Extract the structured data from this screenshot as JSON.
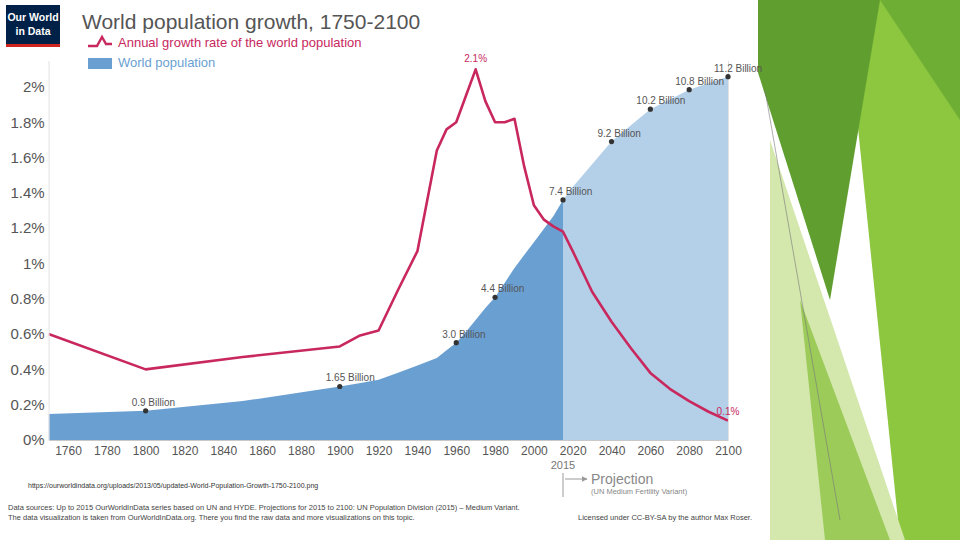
{
  "chart_data": {
    "type": "line",
    "title": "World population growth, 1750-2100",
    "logo": [
      "Our World",
      "in Data"
    ],
    "x": [
      1750,
      1800,
      1850,
      1900,
      1910,
      1920,
      1930,
      1940,
      1950,
      1955,
      1960,
      1965,
      1970,
      1975,
      1980,
      1985,
      1990,
      1995,
      2000,
      2005,
      2010,
      2015,
      2020,
      2030,
      2040,
      2050,
      2060,
      2070,
      2080,
      2090,
      2100
    ],
    "xlim": [
      1750,
      2100
    ],
    "xticks": [
      1760,
      1780,
      1800,
      1820,
      1840,
      1860,
      1880,
      1900,
      1920,
      1940,
      1960,
      1980,
      2000,
      2020,
      2040,
      2060,
      2080,
      2100
    ],
    "ylim": [
      0,
      2.15
    ],
    "yticks": [
      {
        "value": 0,
        "label": "0%"
      },
      {
        "value": 0.2,
        "label": "0.2%"
      },
      {
        "value": 0.4,
        "label": "0.4%"
      },
      {
        "value": 0.6,
        "label": "0.6%"
      },
      {
        "value": 0.8,
        "label": "0.8%"
      },
      {
        "value": 1,
        "label": "1%"
      },
      {
        "value": 1.2,
        "label": "1.2%"
      },
      {
        "value": 1.4,
        "label": "1.4%"
      },
      {
        "value": 1.6,
        "label": "1.6%"
      },
      {
        "value": 1.8,
        "label": "1.8%"
      },
      {
        "value": 2,
        "label": "2%"
      }
    ],
    "y2lim": [
      0,
      11.7
    ],
    "y2ticks": [],
    "grid": false,
    "legend": "top-left",
    "series": [
      {
        "name": "Annual growth rate of the world population",
        "type": "line",
        "color": "#c8285d",
        "values": [
          0.6,
          0.4,
          0.47,
          0.53,
          0.59,
          0.62,
          0.85,
          1.07,
          1.64,
          1.76,
          1.8,
          1.95,
          2.1,
          1.92,
          1.8,
          1.8,
          1.82,
          1.55,
          1.33,
          1.25,
          1.21,
          1.18,
          1.07,
          0.84,
          0.67,
          0.52,
          0.38,
          0.29,
          0.22,
          0.16,
          0.11
        ]
      },
      {
        "name": "World population",
        "type": "area",
        "axis": "y2",
        "color": "#6a9fd2",
        "values": [
          0.8,
          0.9,
          1.2,
          1.65,
          1.75,
          1.86,
          2.07,
          2.3,
          2.53,
          2.77,
          3.0,
          3.34,
          3.7,
          4.07,
          4.4,
          4.85,
          5.3,
          5.7,
          6.1,
          6.5,
          6.9,
          7.4,
          7.8,
          8.5,
          9.2,
          9.7,
          10.2,
          10.5,
          10.8,
          11.0,
          11.2
        ]
      }
    ],
    "annotations": [
      {
        "x": 1970,
        "y": 2.1,
        "label": "2.1%"
      },
      {
        "x": 2100,
        "y": 0.1,
        "label": "0.1%"
      },
      {
        "x": 1800,
        "y": 0.9,
        "label": "0.9 Billion",
        "axis": "y2"
      },
      {
        "x": 1900,
        "y": 1.65,
        "label": "1.65 Billion",
        "axis": "y2"
      },
      {
        "x": 1960,
        "y": 3.0,
        "label": "3.0 Billion",
        "axis": "y2"
      },
      {
        "x": 1980,
        "y": 4.4,
        "label": "4.4 Billion",
        "axis": "y2"
      },
      {
        "x": 2015,
        "y": 7.4,
        "label": "7.4 Billion",
        "axis": "y2"
      },
      {
        "x": 2040,
        "y": 9.2,
        "label": "9.2 Billion",
        "axis": "y2"
      },
      {
        "x": 2060,
        "y": 10.2,
        "label": "10.2 Billion",
        "axis": "y2"
      },
      {
        "x": 2080,
        "y": 10.8,
        "label": "10.8 Billion",
        "axis": "y2"
      },
      {
        "x": 2100,
        "y": 11.2,
        "label": "11.2 Billion",
        "axis": "y2"
      }
    ],
    "projection": {
      "start": 2015,
      "label": "Projection",
      "note": "(UN Medium Fertility Variant)"
    },
    "source_url": "https://ourworldindata.org/uploads/2013/05/updated-World-Population-Growth-1750-2100.png",
    "footer": [
      "Data sources: Up to 2015 OurWorldInData series based on UN and HYDE. Projections for 2015 to 2100: UN Population Division (2015) – Medium Variant.",
      "The data visualization is taken from OurWorldInData.org. There you find the raw data and more visualizations on this topic."
    ],
    "license": "Licensed under CC-BY-SA by the author Max Roser."
  }
}
